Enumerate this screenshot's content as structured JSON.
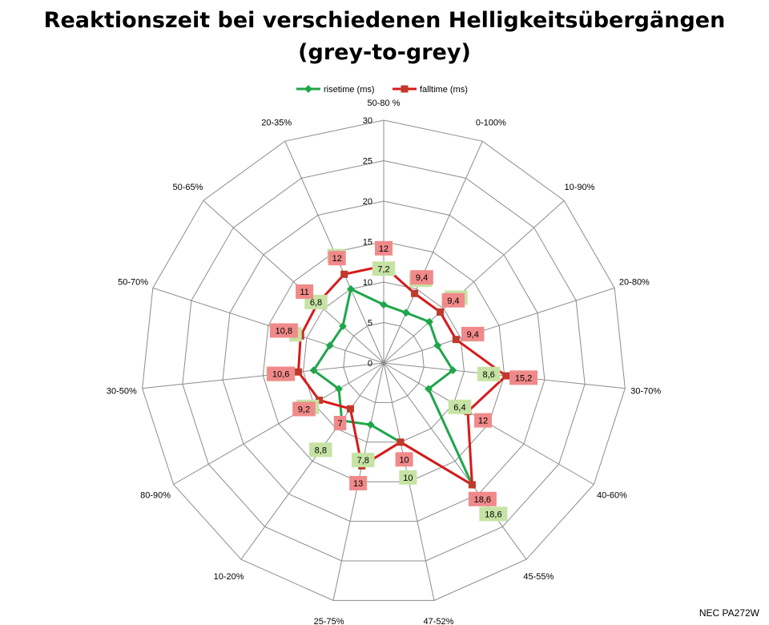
{
  "title_line1": "Reaktionszeit bei verschiedenen Helligkeitsübergängen",
  "title_line2": "(grey-to-grey)",
  "credit": "NEC PA272W",
  "colors": {
    "rise": "#1fa64a",
    "fall": "#d81a1a",
    "rise_label_bg": "#c6e3a5",
    "fall_label_bg": "#f08a8a"
  },
  "chart_data": {
    "type": "radar",
    "categories": [
      "50-80 %",
      "0-100%",
      "10-90%",
      "20-80%",
      "30-70%",
      "40-60%",
      "45-55%",
      "47-52%",
      "25-75%",
      "10-20%",
      "80-90%",
      "30-50%",
      "50-70%",
      "50-65%",
      "20-35%"
    ],
    "series": [
      {
        "name": "risetime (ms)",
        "values": [
          7.2,
          6.8,
          7.6,
          7,
          8.6,
          6.4,
          18.6,
          10,
          7.8,
          8.8,
          6.4,
          8.7,
          7,
          6.8,
          10
        ]
      },
      {
        "name": "falltime (ms)",
        "values": [
          12,
          9.4,
          9.4,
          9.4,
          15.2,
          12,
          18.6,
          10,
          13,
          7,
          9.2,
          10.6,
          10.8,
          11,
          12
        ]
      }
    ],
    "range": [
      0,
      30
    ],
    "ticks": [
      0,
      5,
      10,
      15,
      20,
      25,
      30
    ],
    "legend": "top"
  }
}
